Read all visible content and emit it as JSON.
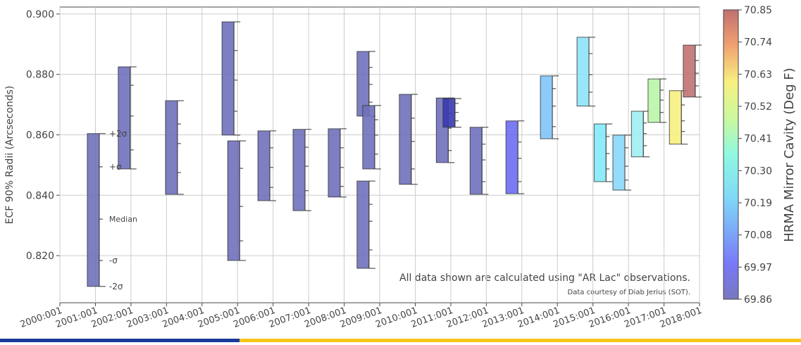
{
  "chart_data": {
    "type": "range_bar",
    "ylabel": "ECF 90% Radii (Arcseconds)",
    "ylim": [
      0.8044,
      0.9023
    ],
    "yticks": [
      {
        "value": 0.82,
        "label": "0.820"
      },
      {
        "value": 0.84,
        "label": "0.840"
      },
      {
        "value": 0.86,
        "label": "0.860"
      },
      {
        "value": 0.88,
        "label": "0.880"
      },
      {
        "value": 0.9,
        "label": "0.900"
      }
    ],
    "xlim": [
      2000,
      2018
    ],
    "xticks": [
      {
        "value": 2000,
        "label": "2000:001"
      },
      {
        "value": 2001,
        "label": "2001:001"
      },
      {
        "value": 2002,
        "label": "2002:001"
      },
      {
        "value": 2003,
        "label": "2003:001"
      },
      {
        "value": 2004,
        "label": "2004:001"
      },
      {
        "value": 2005,
        "label": "2005:001"
      },
      {
        "value": 2006,
        "label": "2006:001"
      },
      {
        "value": 2007,
        "label": "2007:001"
      },
      {
        "value": 2008,
        "label": "2008:001"
      },
      {
        "value": 2009,
        "label": "2009:001"
      },
      {
        "value": 2010,
        "label": "2010:001"
      },
      {
        "value": 2011,
        "label": "2011:001"
      },
      {
        "value": 2012,
        "label": "2012:001"
      },
      {
        "value": 2013,
        "label": "2013:001"
      },
      {
        "value": 2014,
        "label": "2014:001"
      },
      {
        "value": 2015,
        "label": "2015:001"
      },
      {
        "value": 2016,
        "label": "2016:001"
      },
      {
        "value": 2017,
        "label": "2017:001"
      },
      {
        "value": 2018,
        "label": "2018:001"
      }
    ],
    "grid": true,
    "level_labels": [
      "-2σ",
      "-σ",
      "Median",
      "+σ",
      "+2σ"
    ],
    "bars": [
      {
        "x": 2000.94,
        "minus2": 0.8098,
        "minus1": 0.8184,
        "median": 0.8321,
        "plus1": 0.8494,
        "plus2": 0.8604,
        "color": "#7070bb"
      },
      {
        "x": 2001.81,
        "minus2": 0.8487,
        "minus1": 0.855,
        "median": 0.8662,
        "plus1": 0.8764,
        "plus2": 0.8825,
        "color": "#7070bb"
      },
      {
        "x": 2003.14,
        "minus2": 0.8403,
        "minus1": 0.8475,
        "median": 0.8571,
        "plus1": 0.8636,
        "plus2": 0.8713,
        "color": "#7070bb"
      },
      {
        "x": 2004.73,
        "minus2": 0.8599,
        "minus1": 0.8678,
        "median": 0.8781,
        "plus1": 0.8879,
        "plus2": 0.8974,
        "color": "#7070bb"
      },
      {
        "x": 2004.89,
        "minus2": 0.8184,
        "minus1": 0.8249,
        "median": 0.8363,
        "plus1": 0.8489,
        "plus2": 0.858,
        "color": "#7070bb"
      },
      {
        "x": 2005.74,
        "minus2": 0.8382,
        "minus1": 0.8426,
        "median": 0.8492,
        "plus1": 0.8557,
        "plus2": 0.8613,
        "color": "#7070bb"
      },
      {
        "x": 2006.73,
        "minus2": 0.8349,
        "minus1": 0.8415,
        "median": 0.8496,
        "plus1": 0.8559,
        "plus2": 0.8618,
        "color": "#7070bb"
      },
      {
        "x": 2007.72,
        "minus2": 0.8394,
        "minus1": 0.8429,
        "median": 0.8492,
        "plus1": 0.8557,
        "plus2": 0.862,
        "color": "#7070bb"
      },
      {
        "x": 2008.53,
        "minus2": 0.8662,
        "minus1": 0.8708,
        "median": 0.8767,
        "plus1": 0.8823,
        "plus2": 0.8876,
        "color": "#7070bb"
      },
      {
        "x": 2008.69,
        "minus2": 0.8487,
        "minus1": 0.8536,
        "median": 0.8599,
        "plus1": 0.865,
        "plus2": 0.8697,
        "color": "#7070bb"
      },
      {
        "x": 2008.53,
        "minus2": 0.8158,
        "minus1": 0.8219,
        "median": 0.8314,
        "plus1": 0.837,
        "plus2": 0.8447,
        "color": "#7070bb"
      },
      {
        "x": 2009.72,
        "minus2": 0.8436,
        "minus1": 0.8487,
        "median": 0.8578,
        "plus1": 0.8655,
        "plus2": 0.8734,
        "color": "#7070bb"
      },
      {
        "x": 2010.76,
        "minus2": 0.8508,
        "minus1": 0.8548,
        "median": 0.8622,
        "plus1": 0.8671,
        "plus2": 0.8722,
        "color": "#7070bb"
      },
      {
        "x": 2010.95,
        "minus2": 0.8625,
        "minus1": 0.8646,
        "median": 0.8674,
        "plus1": 0.8704,
        "plus2": 0.872,
        "color": "#3a3ab0"
      },
      {
        "x": 2011.71,
        "minus2": 0.8403,
        "minus1": 0.8445,
        "median": 0.8517,
        "plus1": 0.8569,
        "plus2": 0.8625,
        "color": "#7070bb"
      },
      {
        "x": 2012.72,
        "minus2": 0.8405,
        "minus1": 0.8445,
        "median": 0.8522,
        "plus1": 0.8576,
        "plus2": 0.8646,
        "color": "#6d6df2"
      },
      {
        "x": 2013.69,
        "minus2": 0.8587,
        "minus1": 0.8627,
        "median": 0.8695,
        "plus1": 0.8753,
        "plus2": 0.8795,
        "color": "#80c4f8"
      },
      {
        "x": 2014.72,
        "minus2": 0.8695,
        "minus1": 0.8741,
        "median": 0.8799,
        "plus1": 0.8869,
        "plus2": 0.8923,
        "color": "#8ee2f8"
      },
      {
        "x": 2015.2,
        "minus2": 0.8445,
        "minus1": 0.8487,
        "median": 0.8538,
        "plus1": 0.8594,
        "plus2": 0.8636,
        "color": "#84eaf8"
      },
      {
        "x": 2015.73,
        "minus2": 0.8417,
        "minus1": 0.845,
        "median": 0.8496,
        "plus1": 0.8557,
        "plus2": 0.8599,
        "color": "#88d8f8"
      },
      {
        "x": 2016.25,
        "minus2": 0.8527,
        "minus1": 0.8564,
        "median": 0.8604,
        "plus1": 0.8639,
        "plus2": 0.8678,
        "color": "#a0eef2"
      },
      {
        "x": 2016.72,
        "minus2": 0.8641,
        "minus1": 0.8674,
        "median": 0.8715,
        "plus1": 0.8748,
        "plus2": 0.8785,
        "color": "#baf5aa"
      },
      {
        "x": 2017.32,
        "minus2": 0.8569,
        "minus1": 0.8611,
        "median": 0.8646,
        "plus1": 0.8699,
        "plus2": 0.8746,
        "color": "#f8f080"
      },
      {
        "x": 2017.71,
        "minus2": 0.8725,
        "minus1": 0.8762,
        "median": 0.8804,
        "plus1": 0.8846,
        "plus2": 0.8897,
        "color": "#c07272"
      }
    ],
    "annotation": "All data shown are calculated using \"AR Lac\" observations.",
    "credit": "Data courtesy of Diab Jerius (SOT).",
    "colorbar": {
      "label": "HRMA Mirror Cavity (Deg F)",
      "lim": [
        69.86,
        70.85
      ],
      "ticks": [
        {
          "value": 69.86,
          "label": "69.86"
        },
        69.97,
        70.08,
        70.19,
        {
          "value": 70.3,
          "label": "70.30"
        },
        70.41,
        70.52,
        70.63,
        70.74,
        70.85
      ]
    }
  }
}
